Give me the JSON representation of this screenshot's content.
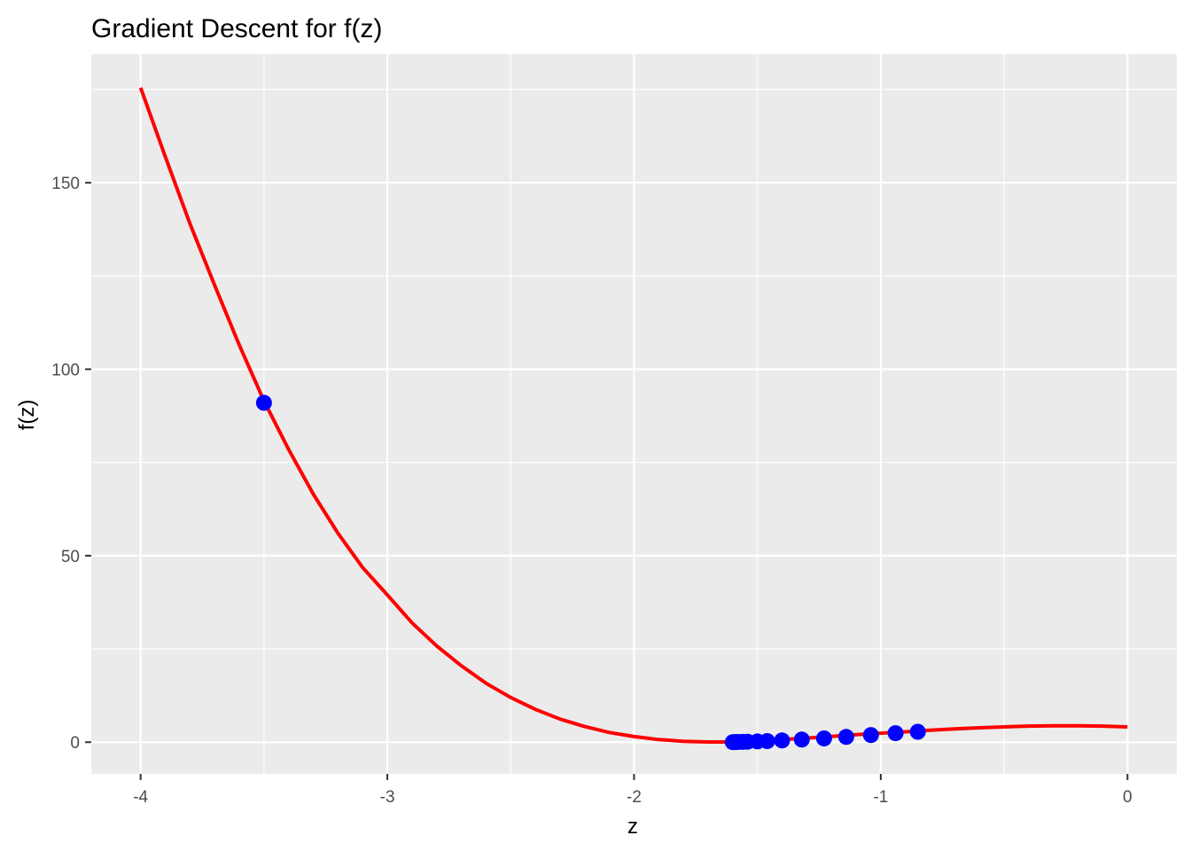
{
  "chart_data": {
    "type": "line",
    "title": "Gradient Descent for f(z)",
    "xlabel": "z",
    "ylabel": "f(z)",
    "xlim": [
      -4.2,
      0.2
    ],
    "ylim": [
      -8.5,
      184.5
    ],
    "x_ticks": [
      {
        "value": -4,
        "label": "-4"
      },
      {
        "value": -3,
        "label": "-3"
      },
      {
        "value": -2,
        "label": "-2"
      },
      {
        "value": -1,
        "label": "-1"
      },
      {
        "value": 0,
        "label": "0"
      }
    ],
    "y_ticks": [
      {
        "value": 0,
        "label": "0"
      },
      {
        "value": 50,
        "label": "50"
      },
      {
        "value": 100,
        "label": "100"
      },
      {
        "value": 150,
        "label": "150"
      }
    ],
    "grid": true,
    "background": "#ebebeb",
    "series": [
      {
        "kind": "line",
        "color": "#ff0000",
        "points": [
          [
            -4.0,
            175.5
          ],
          [
            -3.9,
            157.0
          ],
          [
            -3.8,
            139.0
          ],
          [
            -3.7,
            122.5
          ],
          [
            -3.6,
            106.5
          ],
          [
            -3.5,
            91.5
          ],
          [
            -3.4,
            78.5
          ],
          [
            -3.3,
            66.5
          ],
          [
            -3.2,
            56.0
          ],
          [
            -3.1,
            46.8
          ],
          [
            -3.0,
            39.5
          ],
          [
            -2.9,
            32.0
          ],
          [
            -2.8,
            25.8
          ],
          [
            -2.7,
            20.5
          ],
          [
            -2.6,
            15.8
          ],
          [
            -2.5,
            12.0
          ],
          [
            -2.4,
            8.8
          ],
          [
            -2.3,
            6.2
          ],
          [
            -2.2,
            4.2
          ],
          [
            -2.1,
            2.6
          ],
          [
            -2.0,
            1.5
          ],
          [
            -1.9,
            0.7
          ],
          [
            -1.8,
            0.25
          ],
          [
            -1.7,
            0.05
          ],
          [
            -1.6,
            0.05
          ],
          [
            -1.5,
            0.3
          ],
          [
            -1.4,
            0.7
          ],
          [
            -1.3,
            1.1
          ],
          [
            -1.2,
            1.55
          ],
          [
            -1.1,
            2.0
          ],
          [
            -1.0,
            2.4
          ],
          [
            -0.9,
            2.8
          ],
          [
            -0.8,
            3.2
          ],
          [
            -0.7,
            3.55
          ],
          [
            -0.6,
            3.85
          ],
          [
            -0.5,
            4.1
          ],
          [
            -0.4,
            4.3
          ],
          [
            -0.3,
            4.4
          ],
          [
            -0.2,
            4.4
          ],
          [
            -0.1,
            4.3
          ],
          [
            0.0,
            4.1
          ]
        ]
      },
      {
        "kind": "scatter",
        "color": "#0000ff",
        "points": [
          [
            -3.5,
            91.0
          ],
          [
            -0.85,
            2.8
          ],
          [
            -0.94,
            2.4
          ],
          [
            -1.04,
            1.9
          ],
          [
            -1.14,
            1.4
          ],
          [
            -1.23,
            1.0
          ],
          [
            -1.32,
            0.7
          ],
          [
            -1.4,
            0.45
          ],
          [
            -1.46,
            0.3
          ],
          [
            -1.5,
            0.2
          ],
          [
            -1.54,
            0.12
          ],
          [
            -1.56,
            0.08
          ],
          [
            -1.58,
            0.05
          ],
          [
            -1.59,
            0.03
          ],
          [
            -1.6,
            0.02
          ]
        ]
      }
    ]
  }
}
